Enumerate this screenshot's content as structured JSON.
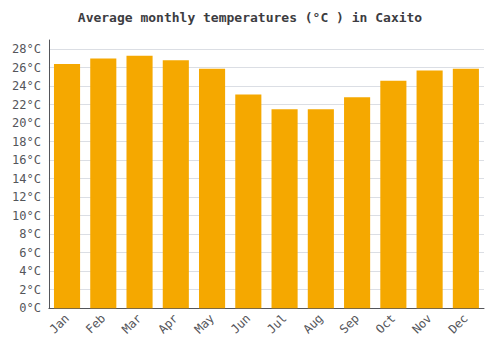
{
  "chart_data": {
    "type": "bar",
    "title": "Average monthly temperatures (°C ) in Caxito",
    "categories": [
      "Jan",
      "Feb",
      "Mar",
      "Apr",
      "May",
      "Jun",
      "Jul",
      "Aug",
      "Sep",
      "Oct",
      "Nov",
      "Dec"
    ],
    "values": [
      26.4,
      27.0,
      27.3,
      26.8,
      25.9,
      23.1,
      21.5,
      21.5,
      22.8,
      24.6,
      25.7,
      25.9
    ],
    "color": "#F5A800",
    "ylim": [
      0,
      29
    ],
    "yticks": [
      {
        "value": 0,
        "label": "0°C"
      },
      {
        "value": 2,
        "label": "2°C"
      },
      {
        "value": 4,
        "label": "4°C"
      },
      {
        "value": 6,
        "label": "6°C"
      },
      {
        "value": 8,
        "label": "8°C"
      },
      {
        "value": 10,
        "label": "10°C"
      },
      {
        "value": 12,
        "label": "12°C"
      },
      {
        "value": 14,
        "label": "14°C"
      },
      {
        "value": 16,
        "label": "16°C"
      },
      {
        "value": 18,
        "label": "18°C"
      },
      {
        "value": 20,
        "label": "20°C"
      },
      {
        "value": 22,
        "label": "22°C"
      },
      {
        "value": 24,
        "label": "24°C"
      },
      {
        "value": 26,
        "label": "26°C"
      },
      {
        "value": 28,
        "label": "28°C"
      }
    ],
    "grid": true
  }
}
